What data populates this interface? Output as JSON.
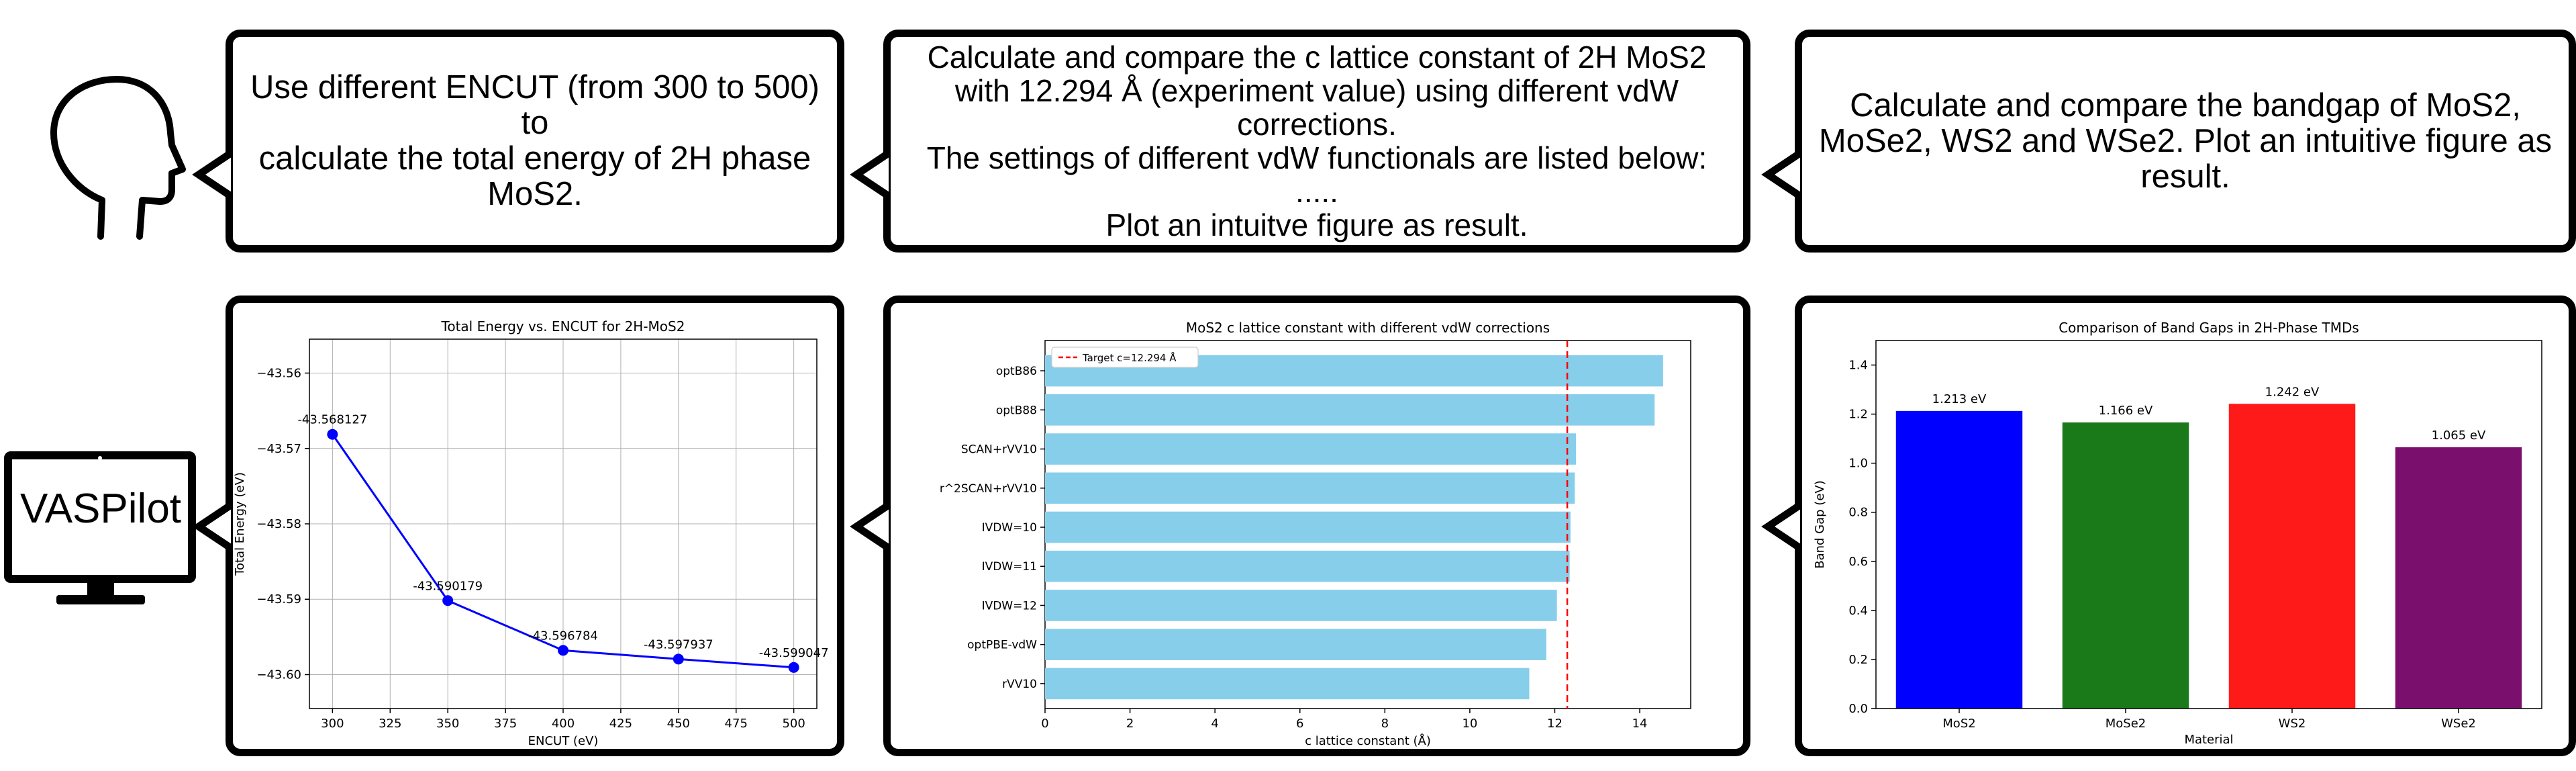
{
  "colors": {
    "line": "#0000ff",
    "bar_h": "#87ceeb",
    "target": "#ff0000",
    "bar1": "#0000ff",
    "bar2": "#1a7a1a",
    "bar3": "#ff1a1a",
    "bar4": "#7a0f6e"
  },
  "icons": {
    "user": "human-head-icon",
    "agent": "computer-monitor-icon"
  },
  "agent": {
    "label": "VASPilot"
  },
  "prompts": {
    "p1": [
      "Use different ENCUT (from 300 to 500) to",
      "calculate the total energy of 2H phase",
      "MoS2."
    ],
    "p2": [
      "Calculate and compare the c lattice constant of 2H MoS2",
      "with 12.294 Å (experiment value) using different vdW",
      "corrections.",
      "The settings of different vdW functionals are listed below:",
      ".....",
      "Plot an intuitve figure as result."
    ],
    "p3": [
      "Calculate and compare the bandgap of MoS2,",
      "MoSe2, WS2 and WSe2. Plot an intuitive figure as",
      "result."
    ]
  },
  "chart_data": [
    {
      "type": "line",
      "title": "Total Energy vs. ENCUT for 2H-MoS2",
      "xlabel": "ENCUT (eV)",
      "ylabel": "Total Energy (eV)",
      "x": [
        300,
        350,
        400,
        450,
        500
      ],
      "y": [
        -43.568127,
        -43.590179,
        -43.596784,
        -43.597937,
        -43.599047
      ],
      "point_labels": [
        "-43.568127",
        "-43.590179",
        "-43.596784",
        "-43.597937",
        "-43.599047"
      ],
      "xticks": [
        "300",
        "325",
        "350",
        "375",
        "400",
        "425",
        "450",
        "475",
        "500"
      ],
      "yticks": [
        "−43.56",
        "−43.57",
        "−43.58",
        "−43.59",
        "−43.60"
      ],
      "xlim": [
        290,
        510
      ],
      "ylim": [
        -43.6045,
        -43.5555
      ],
      "grid": true
    },
    {
      "type": "bar",
      "orientation": "horizontal",
      "title": "MoS2 c lattice constant with different vdW corrections",
      "xlabel": "c lattice constant (Å)",
      "ylabel": "",
      "categories": [
        "optB86",
        "optB88",
        "SCAN+rVV10",
        "r^2SCAN+rVV10",
        "IVDW=10",
        "IVDW=11",
        "IVDW=12",
        "optPBE-vdW",
        "rVV10"
      ],
      "values": [
        14.55,
        14.35,
        12.5,
        12.47,
        12.37,
        12.35,
        12.05,
        11.8,
        11.4
      ],
      "xticks": [
        "0",
        "2",
        "4",
        "6",
        "8",
        "10",
        "12",
        "14"
      ],
      "xlim": [
        0,
        15.2
      ],
      "reference": {
        "value": 12.294,
        "label": "Target c=12.294 Å"
      },
      "legend": "top-left"
    },
    {
      "type": "bar",
      "title": "Comparison of Band Gaps in 2H-Phase TMDs",
      "xlabel": "Material",
      "ylabel": "Band Gap (eV)",
      "categories": [
        "MoS2",
        "MoSe2",
        "WS2",
        "WSe2"
      ],
      "values": [
        1.213,
        1.166,
        1.242,
        1.065
      ],
      "value_labels": [
        "1.213 eV",
        "1.166 eV",
        "1.242 eV",
        "1.065 eV"
      ],
      "yticks": [
        "0.0",
        "0.2",
        "0.4",
        "0.6",
        "0.8",
        "1.0",
        "1.2",
        "1.4"
      ],
      "ylim": [
        0,
        1.5
      ]
    }
  ]
}
